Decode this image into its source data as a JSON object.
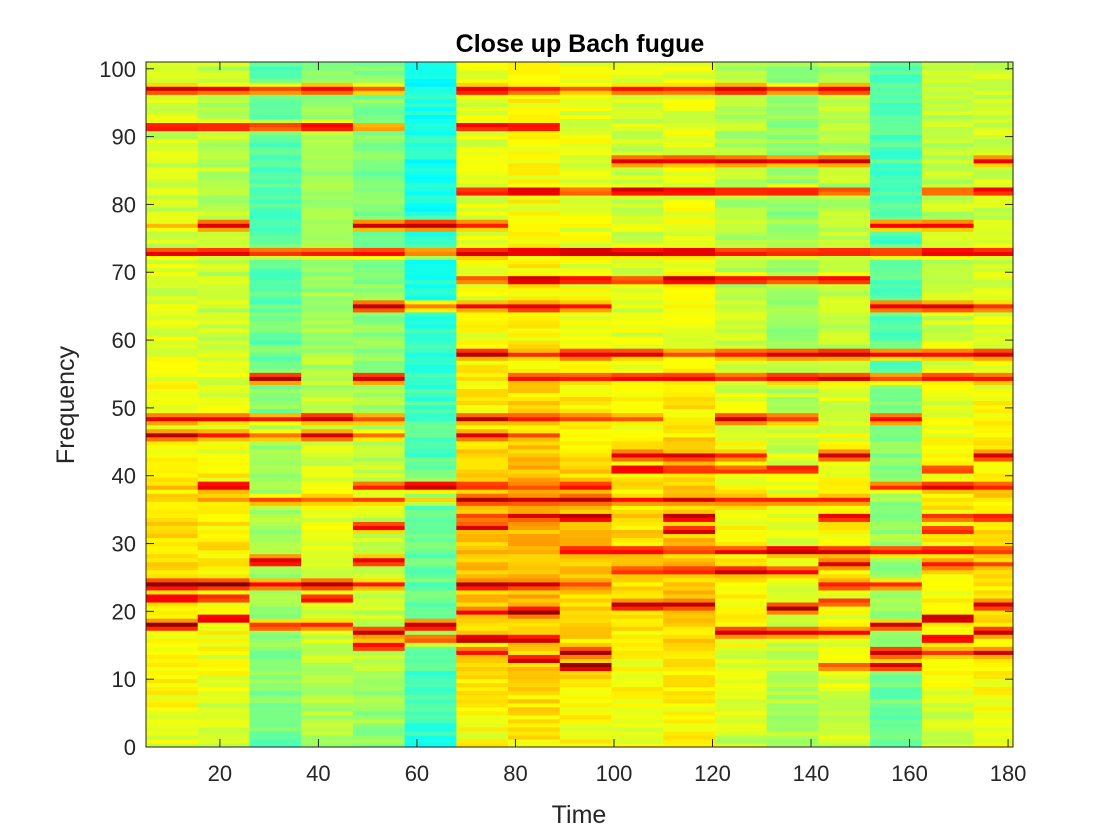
{
  "chart_data": {
    "type": "heatmap",
    "title": "Close up Bach fugue",
    "xlabel": "Time",
    "ylabel": "Frequency",
    "xlim": [
      5,
      181
    ],
    "ylim": [
      0,
      101
    ],
    "xticks": [
      20,
      40,
      60,
      80,
      100,
      120,
      140,
      160,
      180
    ],
    "yticks": [
      0,
      10,
      20,
      30,
      40,
      50,
      60,
      70,
      80,
      90,
      100
    ],
    "colormap": "jet",
    "column_width": 10.5,
    "background_level": 0.5,
    "columns": [
      {
        "x_center": 10.25,
        "base": 0.58,
        "bands": [
          [
            97,
            0.95
          ],
          [
            91.5,
            0.9
          ],
          [
            77,
            0.72
          ],
          [
            73,
            0.9
          ],
          [
            48.5,
            0.92
          ],
          [
            46,
            0.95
          ],
          [
            38.5,
            0.75
          ],
          [
            36.5,
            0.7
          ],
          [
            24,
            1.0
          ],
          [
            22,
            0.9
          ],
          [
            18,
            0.97
          ]
        ]
      },
      {
        "x_center": 20.75,
        "base": 0.56,
        "bands": [
          [
            97,
            0.9
          ],
          [
            91.5,
            0.92
          ],
          [
            77,
            0.95
          ],
          [
            73,
            0.9
          ],
          [
            48.5,
            0.9
          ],
          [
            46,
            0.85
          ],
          [
            38.5,
            0.95
          ],
          [
            36.5,
            0.75
          ],
          [
            24,
            1.0
          ],
          [
            22,
            0.85
          ],
          [
            19,
            0.95
          ]
        ]
      },
      {
        "x_center": 31.25,
        "base": 0.46,
        "bands": [
          [
            97,
            0.85
          ],
          [
            91.5,
            0.85
          ],
          [
            73,
            0.85
          ],
          [
            54.5,
            0.97
          ],
          [
            48.5,
            0.85
          ],
          [
            46,
            0.8
          ],
          [
            36.5,
            0.8
          ],
          [
            27.5,
            0.95
          ],
          [
            24,
            0.9
          ],
          [
            18,
            0.88
          ]
        ]
      },
      {
        "x_center": 41.75,
        "base": 0.52,
        "bands": [
          [
            97,
            0.9
          ],
          [
            91.5,
            0.95
          ],
          [
            73,
            0.88
          ],
          [
            48.5,
            0.95
          ],
          [
            46,
            0.92
          ],
          [
            36.5,
            0.82
          ],
          [
            24,
            0.98
          ],
          [
            22,
            0.9
          ],
          [
            18,
            0.85
          ]
        ]
      },
      {
        "x_center": 52.25,
        "base": 0.5,
        "bands": [
          [
            97,
            0.8
          ],
          [
            91.5,
            0.75
          ],
          [
            77,
            0.92
          ],
          [
            73,
            0.88
          ],
          [
            65,
            0.95
          ],
          [
            54.5,
            0.95
          ],
          [
            48.5,
            0.85
          ],
          [
            46,
            0.8
          ],
          [
            38.5,
            0.85
          ],
          [
            36.5,
            0.8
          ],
          [
            32.5,
            0.92
          ],
          [
            27.5,
            0.9
          ],
          [
            24,
            0.85
          ],
          [
            17,
            0.95
          ],
          [
            15,
            0.9
          ]
        ]
      },
      {
        "x_center": 62.75,
        "base": 0.4,
        "bands": [
          [
            77,
            0.98
          ],
          [
            73,
            0.8
          ],
          [
            65,
            0.8
          ],
          [
            38.5,
            0.95
          ],
          [
            36.5,
            0.7
          ],
          [
            18,
            0.95
          ],
          [
            16,
            0.85
          ]
        ]
      },
      {
        "x_center": 73.25,
        "base": 0.6,
        "bands": [
          [
            97,
            0.95
          ],
          [
            91.5,
            0.9
          ],
          [
            82,
            0.9
          ],
          [
            77,
            0.85
          ],
          [
            73,
            0.95
          ],
          [
            69,
            0.85
          ],
          [
            65,
            0.88
          ],
          [
            58,
            0.95
          ],
          [
            48.5,
            0.95
          ],
          [
            46,
            0.9
          ],
          [
            38.5,
            0.88
          ],
          [
            36.5,
            0.95
          ],
          [
            34,
            0.85
          ],
          [
            32.5,
            0.9
          ],
          [
            24,
            0.98
          ],
          [
            20,
            0.9
          ],
          [
            16,
            0.95
          ],
          [
            14,
            0.9
          ]
        ]
      },
      {
        "x_center": 83.75,
        "base": 0.62,
        "bands": [
          [
            97,
            0.9
          ],
          [
            91.5,
            0.92
          ],
          [
            82,
            0.95
          ],
          [
            73,
            0.95
          ],
          [
            69,
            0.95
          ],
          [
            65,
            0.95
          ],
          [
            58,
            0.85
          ],
          [
            54.5,
            0.85
          ],
          [
            48.5,
            0.9
          ],
          [
            46,
            0.85
          ],
          [
            38.5,
            0.85
          ],
          [
            36.5,
            0.95
          ],
          [
            34,
            0.92
          ],
          [
            24,
            0.95
          ],
          [
            20,
            1.0
          ],
          [
            16,
            0.95
          ],
          [
            13,
            0.95
          ]
        ]
      },
      {
        "x_center": 94.25,
        "base": 0.6,
        "bands": [
          [
            97,
            0.8
          ],
          [
            82,
            0.8
          ],
          [
            73,
            0.98
          ],
          [
            69,
            0.9
          ],
          [
            65,
            0.85
          ],
          [
            58,
            0.95
          ],
          [
            54.5,
            0.85
          ],
          [
            48.5,
            0.85
          ],
          [
            38.5,
            0.9
          ],
          [
            36.5,
            0.95
          ],
          [
            34,
            0.98
          ],
          [
            29,
            0.9
          ],
          [
            24,
            0.85
          ],
          [
            14,
            0.95
          ],
          [
            12,
            0.98
          ]
        ]
      },
      {
        "x_center": 104.75,
        "base": 0.58,
        "bands": [
          [
            97,
            0.9
          ],
          [
            86.5,
            0.92
          ],
          [
            82,
            0.95
          ],
          [
            73,
            0.95
          ],
          [
            69,
            0.85
          ],
          [
            58,
            0.92
          ],
          [
            54.5,
            0.9
          ],
          [
            48.5,
            0.8
          ],
          [
            43,
            0.95
          ],
          [
            41,
            0.9
          ],
          [
            36.5,
            0.85
          ],
          [
            29,
            0.9
          ],
          [
            26,
            0.85
          ],
          [
            21,
            0.95
          ]
        ]
      },
      {
        "x_center": 115.25,
        "base": 0.6,
        "bands": [
          [
            97,
            0.85
          ],
          [
            86.5,
            0.9
          ],
          [
            82,
            0.95
          ],
          [
            73,
            0.98
          ],
          [
            69,
            0.95
          ],
          [
            58,
            0.85
          ],
          [
            54.5,
            0.9
          ],
          [
            43,
            0.92
          ],
          [
            41,
            0.85
          ],
          [
            36.5,
            0.9
          ],
          [
            34,
            0.95
          ],
          [
            32,
            0.92
          ],
          [
            29,
            0.85
          ],
          [
            26,
            0.88
          ],
          [
            21,
            0.95
          ]
        ]
      },
      {
        "x_center": 125.75,
        "base": 0.55,
        "bands": [
          [
            97,
            0.92
          ],
          [
            86.5,
            0.9
          ],
          [
            82,
            0.92
          ],
          [
            73,
            0.9
          ],
          [
            69,
            0.88
          ],
          [
            58,
            0.9
          ],
          [
            54.5,
            0.85
          ],
          [
            48.5,
            0.95
          ],
          [
            43,
            0.88
          ],
          [
            41,
            0.85
          ],
          [
            36.5,
            0.85
          ],
          [
            29,
            0.9
          ],
          [
            26,
            0.92
          ],
          [
            17,
            0.95
          ]
        ]
      },
      {
        "x_center": 136.25,
        "base": 0.52,
        "bands": [
          [
            97,
            0.85
          ],
          [
            86.5,
            0.88
          ],
          [
            82,
            0.92
          ],
          [
            73,
            0.9
          ],
          [
            69,
            0.85
          ],
          [
            58,
            0.92
          ],
          [
            54.5,
            0.9
          ],
          [
            48.5,
            0.85
          ],
          [
            41,
            0.9
          ],
          [
            36.5,
            0.85
          ],
          [
            29,
            0.95
          ],
          [
            26,
            0.9
          ],
          [
            20.5,
            0.95
          ],
          [
            17,
            0.9
          ]
        ]
      },
      {
        "x_center": 146.75,
        "base": 0.55,
        "bands": [
          [
            97,
            0.92
          ],
          [
            86.5,
            0.95
          ],
          [
            82,
            0.85
          ],
          [
            73,
            0.9
          ],
          [
            69,
            0.92
          ],
          [
            58,
            0.95
          ],
          [
            54.5,
            0.92
          ],
          [
            43,
            0.92
          ],
          [
            36.5,
            0.88
          ],
          [
            34,
            0.9
          ],
          [
            29,
            0.95
          ],
          [
            27,
            0.92
          ],
          [
            24,
            0.9
          ],
          [
            21.5,
            0.88
          ],
          [
            17,
            0.9
          ],
          [
            12,
            0.85
          ]
        ]
      },
      {
        "x_center": 157.25,
        "base": 0.45,
        "bands": [
          [
            77,
            0.9
          ],
          [
            73,
            0.88
          ],
          [
            65,
            0.92
          ],
          [
            58,
            0.9
          ],
          [
            54.5,
            0.85
          ],
          [
            48.5,
            0.92
          ],
          [
            38.5,
            0.85
          ],
          [
            29,
            0.9
          ],
          [
            24,
            0.88
          ],
          [
            18,
            0.95
          ],
          [
            14,
            0.98
          ],
          [
            12,
            0.95
          ]
        ]
      },
      {
        "x_center": 167.75,
        "base": 0.56,
        "bands": [
          [
            82,
            0.85
          ],
          [
            77,
            0.92
          ],
          [
            73,
            0.92
          ],
          [
            65,
            0.92
          ],
          [
            58,
            0.85
          ],
          [
            54.5,
            0.88
          ],
          [
            41,
            0.85
          ],
          [
            38.5,
            0.95
          ],
          [
            34,
            0.88
          ],
          [
            32,
            0.9
          ],
          [
            29,
            0.92
          ],
          [
            27,
            0.88
          ],
          [
            19,
            0.98
          ],
          [
            16,
            0.92
          ],
          [
            14,
            0.85
          ]
        ]
      },
      {
        "x_center": 178.25,
        "base": 0.58,
        "bands": [
          [
            86.5,
            0.9
          ],
          [
            82,
            0.92
          ],
          [
            73,
            0.9
          ],
          [
            65,
            0.88
          ],
          [
            58,
            0.92
          ],
          [
            54.5,
            0.9
          ],
          [
            43,
            0.92
          ],
          [
            38.5,
            0.85
          ],
          [
            34,
            0.9
          ],
          [
            29,
            0.88
          ],
          [
            27,
            0.85
          ],
          [
            21,
            0.95
          ],
          [
            17,
            0.95
          ],
          [
            14,
            0.92
          ]
        ]
      }
    ]
  }
}
